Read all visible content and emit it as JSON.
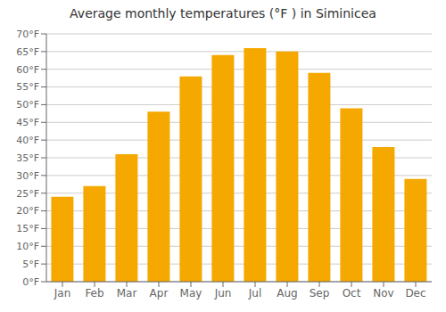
{
  "chart_data": {
    "type": "bar",
    "title": "Average monthly temperatures (°F ) in Siminicea",
    "categories": [
      "Jan",
      "Feb",
      "Mar",
      "Apr",
      "May",
      "Jun",
      "Jul",
      "Aug",
      "Sep",
      "Oct",
      "Nov",
      "Dec"
    ],
    "values": [
      24,
      27,
      36,
      48,
      58,
      64,
      66,
      65,
      59,
      49,
      38,
      29
    ],
    "color": "#F5A800",
    "ylim": [
      0,
      70
    ],
    "yticks": [
      {
        "value": 0,
        "label": "0°F"
      },
      {
        "value": 5,
        "label": "5°F"
      },
      {
        "value": 10,
        "label": "10°F"
      },
      {
        "value": 15,
        "label": "15°F"
      },
      {
        "value": 20,
        "label": "20°F"
      },
      {
        "value": 25,
        "label": "25°F"
      },
      {
        "value": 30,
        "label": "30°F"
      },
      {
        "value": 35,
        "label": "35°F"
      },
      {
        "value": 40,
        "label": "40°F"
      },
      {
        "value": 45,
        "label": "45°F"
      },
      {
        "value": 50,
        "label": "50°F"
      },
      {
        "value": 55,
        "label": "55°F"
      },
      {
        "value": 60,
        "label": "60°F"
      },
      {
        "value": 65,
        "label": "65°F"
      },
      {
        "value": 70,
        "label": "70°F"
      }
    ],
    "grid": true
  }
}
